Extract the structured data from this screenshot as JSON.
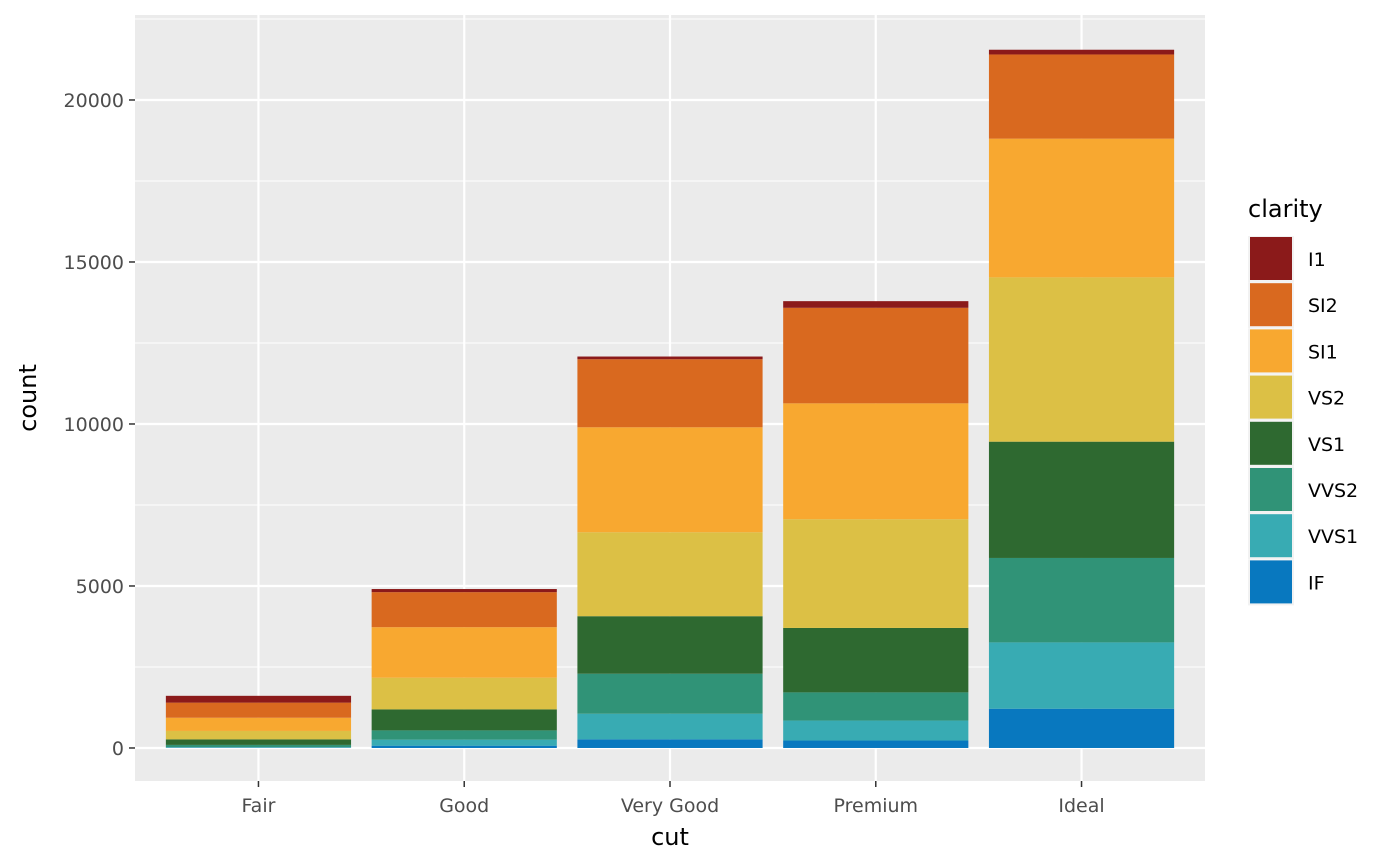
{
  "chart_data": {
    "type": "bar",
    "stacked": true,
    "title": "",
    "xlabel": "cut",
    "ylabel": "count",
    "categories": [
      "Fair",
      "Good",
      "Very Good",
      "Premium",
      "Ideal"
    ],
    "ylim": [
      -1019,
      22623
    ],
    "yticks": [
      0,
      5000,
      10000,
      15000,
      20000
    ],
    "ytick_labels": [
      "0",
      "5000",
      "10000",
      "15000",
      "20000"
    ],
    "grid": true,
    "legend": {
      "title": "clarity",
      "placement": "right"
    },
    "series": [
      {
        "name": "I1",
        "color": "#8B1A1A",
        "values": [
          210,
          96,
          84,
          205,
          146
        ]
      },
      {
        "name": "SI2",
        "color": "#D9691F",
        "values": [
          466,
          1081,
          2100,
          2949,
          2598
        ]
      },
      {
        "name": "SI1",
        "color": "#F8A830",
        "values": [
          408,
          1560,
          3240,
          3575,
          4282
        ]
      },
      {
        "name": "VS2",
        "color": "#DCC045",
        "values": [
          261,
          978,
          2591,
          3357,
          5071
        ]
      },
      {
        "name": "VS1",
        "color": "#2E6930",
        "values": [
          170,
          648,
          1775,
          1989,
          3589
        ]
      },
      {
        "name": "VVS2",
        "color": "#309377",
        "values": [
          69,
          286,
          1235,
          870,
          2606
        ]
      },
      {
        "name": "VVS1",
        "color": "#38ABB3",
        "values": [
          17,
          186,
          789,
          616,
          2047
        ]
      },
      {
        "name": "IF",
        "color": "#0878BF",
        "values": [
          9,
          71,
          268,
          230,
          1212
        ]
      }
    ]
  }
}
